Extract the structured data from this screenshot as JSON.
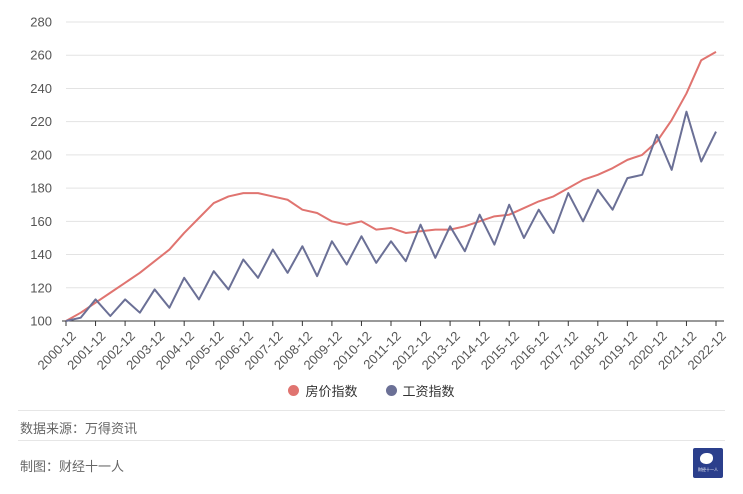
{
  "chart_data": {
    "type": "line",
    "x": [
      "2000-12",
      "2001-06",
      "2001-12",
      "2002-06",
      "2002-12",
      "2003-06",
      "2003-12",
      "2004-06",
      "2004-12",
      "2005-06",
      "2005-12",
      "2006-06",
      "2006-12",
      "2007-06",
      "2007-12",
      "2008-06",
      "2008-12",
      "2009-06",
      "2009-12",
      "2010-06",
      "2010-12",
      "2011-06",
      "2011-12",
      "2012-06",
      "2012-12",
      "2013-06",
      "2013-12",
      "2014-06",
      "2014-12",
      "2015-06",
      "2015-12",
      "2016-06",
      "2016-12",
      "2017-06",
      "2017-12",
      "2018-06",
      "2018-12",
      "2019-06",
      "2019-12",
      "2020-06",
      "2020-12",
      "2021-06",
      "2021-12",
      "2022-06",
      "2022-12"
    ],
    "tick_labels": [
      "2000-12",
      "2001-12",
      "2002-12",
      "2003-12",
      "2004-12",
      "2005-12",
      "2006-12",
      "2007-12",
      "2008-12",
      "2009-12",
      "2010-12",
      "2011-12",
      "2012-12",
      "2013-12",
      "2014-12",
      "2015-12",
      "2016-12",
      "2017-12",
      "2018-12",
      "2019-12",
      "2020-12",
      "2021-12",
      "2022-12"
    ],
    "series": [
      {
        "name": "房价指数",
        "color": "#e07470",
        "values": [
          100,
          105,
          111,
          117,
          123,
          129,
          136,
          143,
          153,
          162,
          171,
          175,
          177,
          177,
          175,
          173,
          167,
          165,
          160,
          158,
          160,
          155,
          156,
          153,
          154,
          155,
          155,
          157,
          160,
          163,
          164,
          168,
          172,
          175,
          180,
          185,
          188,
          192,
          197,
          200,
          208,
          221,
          237,
          257,
          262
        ]
      },
      {
        "name": "工资指数",
        "color": "#6b7096",
        "values": [
          100,
          102,
          113,
          103,
          113,
          105,
          119,
          108,
          126,
          113,
          130,
          119,
          137,
          126,
          143,
          129,
          145,
          127,
          148,
          134,
          151,
          135,
          148,
          136,
          158,
          138,
          157,
          142,
          164,
          146,
          170,
          150,
          167,
          153,
          177,
          160,
          179,
          167,
          186,
          188,
          212,
          191,
          226,
          196,
          214
        ]
      }
    ],
    "ylim": [
      100,
      280
    ],
    "yticks": [
      100,
      120,
      140,
      160,
      180,
      200,
      220,
      240,
      260,
      280
    ],
    "grid": true,
    "legend_position": "bottom-center"
  },
  "footer": {
    "source": "数据来源：万得资讯",
    "credit": "制图：财经十一人",
    "logo_text": "财经十一人"
  }
}
